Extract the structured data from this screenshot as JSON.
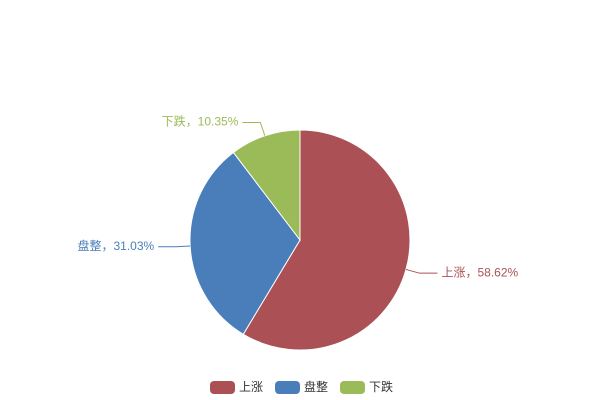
{
  "chart_data": {
    "type": "pie",
    "categories": [
      "上涨",
      "盘整",
      "下跌"
    ],
    "values": [
      58.62,
      31.03,
      10.35
    ],
    "value_labels": [
      "上涨，58.62%",
      "盘整，31.03%",
      "下跌，10.35%"
    ],
    "colors": [
      "#ab5155",
      "#4a7ebb",
      "#9bbb59"
    ],
    "legend": "bottom"
  }
}
